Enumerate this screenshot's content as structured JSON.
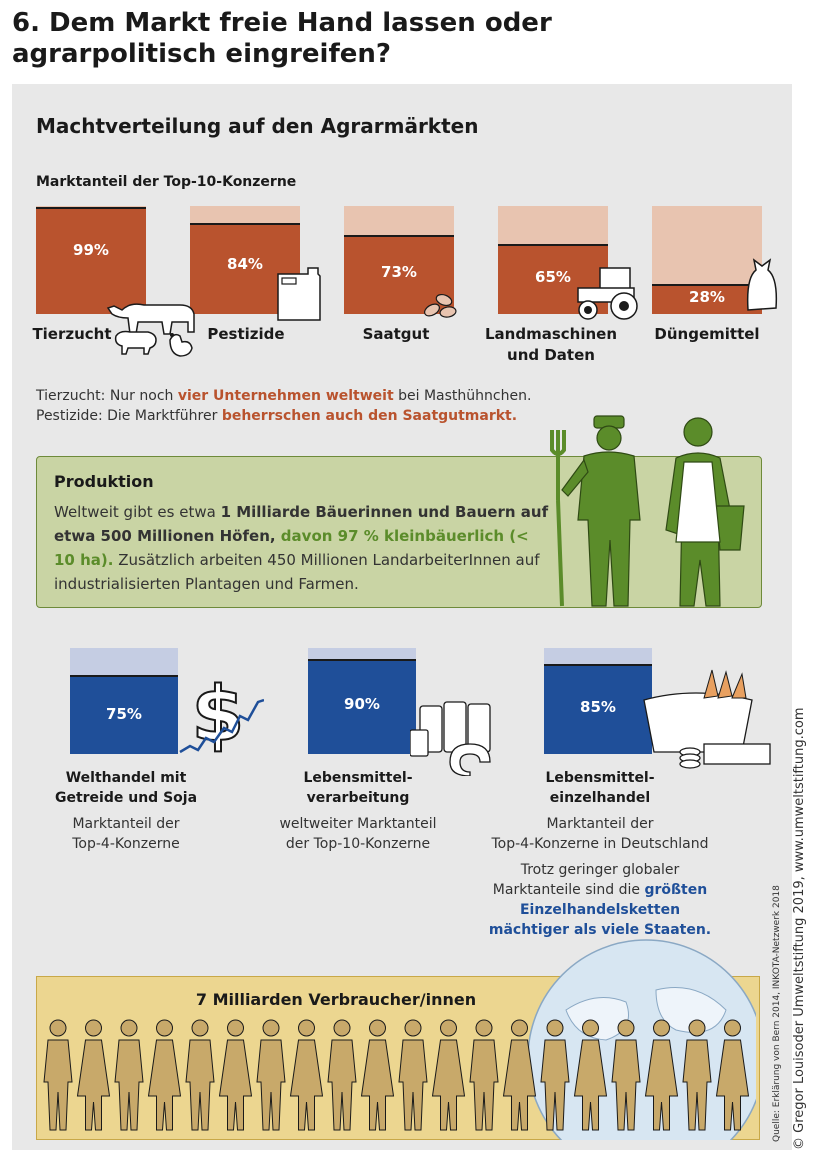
{
  "page_title": "6. Dem Markt freie Hand lassen oder agrarpolitisch eingreifen?",
  "section_title": "Machtverteilung auf den Agrarmärkten",
  "market_label": "Marktanteil der Top-10-Konzerne",
  "chart_data": [
    {
      "type": "bar",
      "title": "Marktanteil der Top-10-Konzerne",
      "categories": [
        "Tierzucht",
        "Pestizide",
        "Saatgut",
        "Landmaschinen und Daten",
        "Düngemittel"
      ],
      "values": [
        99,
        84,
        73,
        65,
        28
      ],
      "value_labels": [
        "99%",
        "84%",
        "73%",
        "65%",
        "28%"
      ],
      "ylim": [
        0,
        100
      ],
      "colors": {
        "fill": "#b9532e",
        "remainder": "#e8c4b0"
      }
    },
    {
      "type": "bar",
      "categories": [
        "Welthandel mit Getreide und Soja",
        "Lebensmittelverarbeitung",
        "Lebensmitteleinzelhandel"
      ],
      "values": [
        75,
        90,
        85
      ],
      "value_labels": [
        "75%",
        "90%",
        "85%"
      ],
      "ylim": [
        0,
        100
      ],
      "colors": {
        "fill": "#1f4f99",
        "remainder": "#c5cde3"
      }
    }
  ],
  "top_labels": {
    "tierzucht": "Tierzucht",
    "pestizide": "Pestizide",
    "saatgut": "Saatgut",
    "landmaschinen_1": "Landmaschinen",
    "landmaschinen_2": "und Daten",
    "duengemittel": "Düngemittel"
  },
  "notes": {
    "line1_a": "Tierzucht: Nur noch ",
    "line1_b": "vier Unternehmen weltweit",
    "line1_c": " bei Masthühnchen.",
    "line2_a": "Pestizide: Die Marktführer ",
    "line2_b": "beherrschen auch den Saatgutmarkt."
  },
  "produktion": {
    "title": "Produktion",
    "t1": "Weltweit gibt es etwa ",
    "t2": "1 Milliarde Bäuerinnen und Bauern auf etwa 500 Millionen Höfen,",
    "t3": " davon 97 % kleinbäuerlich (< 10 ha).",
    "t4": " Zusätzlich arbeiten 450 Millionen LandarbeiterInnen auf industrialisierten Plantagen und Farmen."
  },
  "lower_cols": [
    {
      "title1": "Welthandel mit",
      "title2": "Getreide und Soja",
      "sub1": "Marktanteil der",
      "sub2": "Top-4-Konzerne"
    },
    {
      "title1": "Lebensmittel-",
      "title2": "verarbeitung",
      "sub1": "weltweiter Marktanteil",
      "sub2": "der Top-10-Konzerne"
    },
    {
      "title1": "Lebensmittel-",
      "title2": "einzelhandel",
      "sub1": "Marktanteil der",
      "sub2": "Top-4-Konzerne in Deutschland"
    }
  ],
  "retail_note": {
    "l1": "Trotz geringer globaler",
    "l2a": "Marktanteile sind die ",
    "l2b": "größten",
    "l3": "Einzelhandelsketten",
    "l4": "mächtiger als viele Staaten."
  },
  "consumer_label": "7 Milliarden Verbraucher/innen",
  "source": "Quelle: Erklärung von Bern 2014, INKOTA-Netzwerk 2018",
  "copyright": "© Gregor Louisoder Umweltstiftung 2019, www.umweltstiftung.com",
  "colors": {
    "brown": "#b9532e",
    "green": "#5b8c2a",
    "blue": "#1f4f99",
    "figure_khaki": "#c8a96a"
  }
}
